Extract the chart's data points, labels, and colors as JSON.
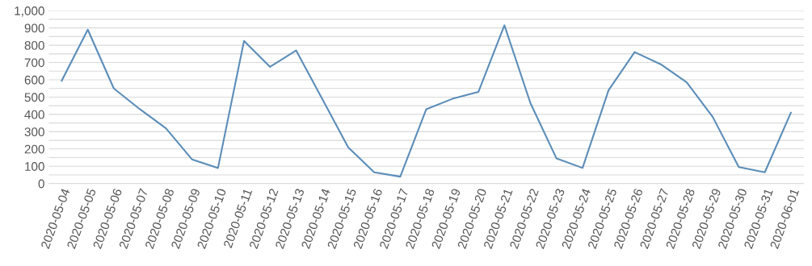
{
  "chart_data": {
    "type": "line",
    "categories": [
      "2020-05-04",
      "2020-05-05",
      "2020-05-06",
      "2020-05-07",
      "2020-05-08",
      "2020-05-09",
      "2020-05-10",
      "2020-05-11",
      "2020-05-12",
      "2020-05-13",
      "2020-05-14",
      "2020-05-15",
      "2020-05-16",
      "2020-05-17",
      "2020-05-18",
      "2020-05-19",
      "2020-05-20",
      "2020-05-21",
      "2020-05-22",
      "2020-05-23",
      "2020-05-24",
      "2020-05-25",
      "2020-05-26",
      "2020-05-27",
      "2020-05-28",
      "2020-05-29",
      "2020-05-30",
      "2020-05-31",
      "2020-06-01"
    ],
    "series": [
      {
        "color": "#5b8db8",
        "values": [
          595,
          890,
          550,
          430,
          320,
          140,
          90,
          825,
          675,
          770,
          490,
          210,
          65,
          40,
          430,
          490,
          530,
          915,
          465,
          145,
          90,
          540,
          760,
          690,
          585,
          385,
          95,
          65,
          410
        ]
      }
    ],
    "ylim": [
      0,
      1000
    ],
    "yticks": [
      0,
      {
        "value": 50,
        "label": null
      },
      100,
      {
        "value": 150,
        "label": null
      },
      200,
      {
        "value": 250,
        "label": null
      },
      300,
      {
        "value": 350,
        "label": null
      },
      400,
      {
        "value": 450,
        "label": null
      },
      500,
      {
        "value": 550,
        "label": null
      },
      600,
      {
        "value": 650,
        "label": null
      },
      700,
      {
        "value": 750,
        "label": null
      },
      800,
      {
        "value": 850,
        "label": null
      },
      900,
      {
        "value": 950,
        "label": null
      },
      {
        "value": 1000,
        "label": "1,000"
      }
    ],
    "grid": "y",
    "marker": "none",
    "line_style": "solid"
  }
}
